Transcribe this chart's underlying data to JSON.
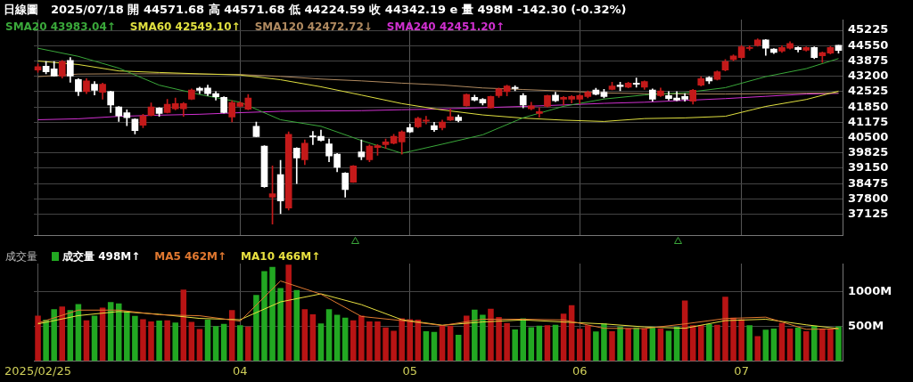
{
  "chart_data": [
    {
      "type": "candlestick",
      "title": "日線圖",
      "subtitle": "2025/07/18 開 44571.68 高 44571.68 低 44224.59 收 44342.19 e 量 498M -142.30 (-0.32%)",
      "categories": [
        "2025/02/25",
        null,
        null,
        null,
        null,
        null,
        null,
        null,
        null,
        null,
        null,
        null,
        null,
        null,
        null,
        null,
        null,
        null,
        null,
        null,
        null,
        null,
        null,
        null,
        null,
        "04",
        null,
        null,
        null,
        null,
        null,
        null,
        null,
        null,
        null,
        null,
        null,
        null,
        null,
        null,
        null,
        null,
        null,
        null,
        null,
        null,
        "05",
        null,
        null,
        null,
        null,
        null,
        null,
        null,
        null,
        null,
        null,
        null,
        null,
        null,
        null,
        null,
        null,
        null,
        null,
        null,
        null,
        "06",
        null,
        null,
        null,
        null,
        null,
        null,
        null,
        null,
        null,
        null,
        null,
        null,
        null,
        null,
        null,
        null,
        null,
        null,
        null,
        "07",
        null,
        null,
        null,
        null,
        null,
        null,
        null,
        null,
        null,
        null,
        null,
        null
      ],
      "ohlc": [
        [
          43475,
          43750,
          43375,
          43625
        ],
        [
          43650,
          43850,
          43312,
          43400
        ],
        [
          43525,
          43850,
          43200,
          43212
        ],
        [
          43212,
          43900,
          43125,
          43850
        ],
        [
          43900,
          44025,
          42938,
          43212
        ],
        [
          43062,
          43100,
          42350,
          42525
        ],
        [
          42525,
          43100,
          42438,
          43000
        ],
        [
          42850,
          42975,
          42375,
          42588
        ],
        [
          42500,
          42900,
          42188,
          42850
        ],
        [
          42525,
          42550,
          41600,
          41938
        ],
        [
          41850,
          41875,
          41212,
          41462
        ],
        [
          41600,
          41725,
          41025,
          41375
        ],
        [
          41312,
          41338,
          40662,
          40812
        ],
        [
          41050,
          41525,
          40938,
          41462
        ],
        [
          41475,
          42025,
          41462,
          41850
        ],
        [
          41800,
          41825,
          41438,
          41562
        ],
        [
          41600,
          42188,
          41588,
          41975
        ],
        [
          41775,
          42250,
          41725,
          42000
        ],
        [
          41775,
          42050,
          41438,
          42000
        ],
        [
          42188,
          42650,
          42175,
          42600
        ],
        [
          42675,
          42725,
          42438,
          42588
        ],
        [
          42688,
          42812,
          42350,
          42438
        ],
        [
          42438,
          42525,
          42150,
          42300
        ],
        [
          42275,
          42300,
          41588,
          41600
        ],
        [
          41412,
          42125,
          41188,
          42050
        ],
        [
          41875,
          42075,
          41850,
          42025
        ],
        [
          41750,
          42400,
          41725,
          42250
        ],
        [
          41000,
          41188,
          40538,
          40550
        ],
        [
          40125,
          40150,
          38312,
          38338
        ],
        [
          37875,
          39250,
          36688,
          38025
        ],
        [
          38875,
          39500,
          37150,
          37712
        ],
        [
          37400,
          40750,
          37312,
          40650
        ],
        [
          40038,
          40062,
          38475,
          39600
        ],
        [
          39525,
          40400,
          39312,
          40250
        ],
        [
          40562,
          40775,
          40188,
          40538
        ],
        [
          40562,
          40838,
          40350,
          40375
        ],
        [
          40225,
          40438,
          39438,
          39688
        ],
        [
          39775,
          39800,
          39000,
          39188
        ],
        [
          38938,
          38962,
          37875,
          38212
        ],
        [
          38538,
          39275,
          38525,
          39250
        ],
        [
          39875,
          40400,
          39525,
          39650
        ],
        [
          39525,
          40188,
          39438,
          40125
        ],
        [
          40062,
          40200,
          39725,
          40150
        ],
        [
          40188,
          40438,
          40025,
          40312
        ],
        [
          40250,
          40650,
          40225,
          40562
        ],
        [
          40312,
          40800,
          39775,
          40750
        ],
        [
          40938,
          41100,
          40725,
          40750
        ],
        [
          40975,
          41400,
          40938,
          41350
        ],
        [
          41225,
          41438,
          41100,
          41275
        ],
        [
          41025,
          41175,
          40775,
          40850
        ],
        [
          40938,
          41275,
          40838,
          41188
        ],
        [
          41275,
          41750,
          41250,
          41425
        ],
        [
          41400,
          41500,
          41188,
          41250
        ],
        [
          41900,
          42425,
          41888,
          42400
        ],
        [
          42275,
          42375,
          42112,
          42150
        ],
        [
          42188,
          42225,
          41938,
          42025
        ],
        [
          41812,
          42338,
          41800,
          42312
        ],
        [
          42350,
          42688,
          42275,
          42650
        ],
        [
          42525,
          42812,
          42338,
          42775
        ],
        [
          42712,
          42788,
          42562,
          42662
        ],
        [
          42350,
          42438,
          41812,
          41938
        ],
        [
          41775,
          42062,
          41725,
          41900
        ],
        [
          41562,
          41812,
          41400,
          41650
        ],
        [
          41875,
          42375,
          41850,
          42350
        ],
        [
          42375,
          42500,
          42088,
          42125
        ],
        [
          42188,
          42312,
          41938,
          42275
        ],
        [
          42188,
          42350,
          42025,
          42312
        ],
        [
          42188,
          42400,
          42000,
          42350
        ],
        [
          42312,
          42562,
          42250,
          42500
        ],
        [
          42600,
          42675,
          42375,
          42412
        ],
        [
          42500,
          42625,
          42250,
          42312
        ],
        [
          42625,
          42938,
          42600,
          42775
        ],
        [
          42812,
          42938,
          42562,
          42750
        ],
        [
          42725,
          42938,
          42688,
          42900
        ],
        [
          42900,
          43125,
          42725,
          42850
        ],
        [
          42725,
          43000,
          42625,
          42975
        ],
        [
          42600,
          42650,
          42100,
          42188
        ],
        [
          42350,
          42688,
          42312,
          42562
        ],
        [
          42350,
          42525,
          42150,
          42225
        ],
        [
          42250,
          42525,
          42125,
          42150
        ],
        [
          42312,
          42438,
          42100,
          42188
        ],
        [
          42100,
          42625,
          41975,
          42588
        ],
        [
          42812,
          43188,
          42775,
          43100
        ],
        [
          43150,
          43188,
          42875,
          43000
        ],
        [
          43062,
          43438,
          43038,
          43400
        ],
        [
          43475,
          43938,
          43438,
          43850
        ],
        [
          43938,
          44150,
          43875,
          44100
        ],
        [
          44025,
          44562,
          44000,
          44500
        ],
        [
          44425,
          44550,
          44350,
          44475
        ],
        [
          44562,
          44850,
          44525,
          44800
        ],
        [
          44800,
          44825,
          44125,
          44438
        ],
        [
          44400,
          44425,
          44200,
          44250
        ],
        [
          44312,
          44550,
          44250,
          44475
        ],
        [
          44438,
          44725,
          44400,
          44650
        ],
        [
          44475,
          44500,
          44275,
          44375
        ],
        [
          44350,
          44500,
          44312,
          44475
        ],
        [
          44475,
          44500,
          43975,
          44025
        ],
        [
          44100,
          44275,
          43812,
          44250
        ],
        [
          44225,
          44525,
          44188,
          44475
        ],
        [
          44572,
          44572,
          44225,
          44342
        ]
      ],
      "colors": [
        "#c41a1a",
        "#ffffff",
        "#ffffff",
        "#c41a1a",
        "#ffffff",
        "#ffffff",
        "#c41a1a",
        "#ffffff",
        "#c41a1a",
        "#ffffff",
        "#ffffff",
        "#ffffff",
        "#ffffff",
        "#c41a1a",
        "#c41a1a",
        "#ffffff",
        "#c41a1a",
        "#c41a1a",
        "#c41a1a",
        "#c41a1a",
        "#ffffff",
        "#ffffff",
        "#ffffff",
        "#ffffff",
        "#c41a1a",
        "#c41a1a",
        "#c41a1a",
        "#ffffff",
        "#ffffff",
        "#c41a1a",
        "#ffffff",
        "#c41a1a",
        "#ffffff",
        "#c41a1a",
        "#ffffff",
        "#ffffff",
        "#ffffff",
        "#ffffff",
        "#ffffff",
        "#c41a1a",
        "#ffffff",
        "#c41a1a",
        "#c41a1a",
        "#c41a1a",
        "#c41a1a",
        "#c41a1a",
        "#ffffff",
        "#c41a1a",
        "#c41a1a",
        "#ffffff",
        "#c41a1a",
        "#c41a1a",
        "#ffffff",
        "#c41a1a",
        "#ffffff",
        "#ffffff",
        "#c41a1a",
        "#c41a1a",
        "#c41a1a",
        "#ffffff",
        "#ffffff",
        "#c41a1a",
        "#c41a1a",
        "#c41a1a",
        "#ffffff",
        "#c41a1a",
        "#c41a1a",
        "#c41a1a",
        "#c41a1a",
        "#ffffff",
        "#ffffff",
        "#c41a1a",
        "#ffffff",
        "#c41a1a",
        "#ffffff",
        "#c41a1a",
        "#ffffff",
        "#c41a1a",
        "#ffffff",
        "#ffffff",
        "#ffffff",
        "#c41a1a",
        "#c41a1a",
        "#ffffff",
        "#c41a1a",
        "#c41a1a",
        "#c41a1a",
        "#c41a1a",
        "#c41a1a",
        "#c41a1a",
        "#ffffff",
        "#ffffff",
        "#c41a1a",
        "#c41a1a",
        "#ffffff",
        "#c41a1a",
        "#ffffff",
        "#c41a1a",
        "#c41a1a",
        "#ffffff"
      ],
      "series": [
        {
          "name": "SMA20 43983.04↑",
          "type": "line",
          "color": "#3aa83a",
          "values": [
            44438,
            null,
            null,
            null,
            null,
            44080,
            null,
            null,
            null,
            null,
            43562,
            null,
            null,
            null,
            null,
            42812,
            null,
            null,
            null,
            null,
            42400,
            null,
            null,
            null,
            null,
            42060,
            null,
            null,
            null,
            null,
            41288,
            null,
            null,
            null,
            null,
            41000,
            null,
            null,
            null,
            null,
            40375,
            null,
            null,
            null,
            null,
            39810,
            null,
            null,
            null,
            null,
            40212,
            null,
            null,
            null,
            null,
            40625,
            null,
            null,
            null,
            null,
            41375,
            null,
            null,
            null,
            null,
            41880,
            null,
            null,
            null,
            null,
            42200,
            null,
            null,
            null,
            null,
            42380,
            null,
            null,
            null,
            null,
            42480,
            null,
            null,
            null,
            null,
            42700,
            null,
            null,
            null,
            null,
            43188,
            null,
            null,
            null,
            null,
            43540,
            null,
            null,
            null,
            43983
          ]
        },
        {
          "name": "SMA60 42549.10↑",
          "type": "line",
          "color": "#e0e040",
          "values": [
            43875,
            null,
            null,
            null,
            null,
            43720,
            null,
            null,
            null,
            null,
            43438,
            null,
            null,
            null,
            null,
            43370,
            null,
            null,
            null,
            null,
            43310,
            null,
            null,
            null,
            null,
            43260,
            null,
            null,
            null,
            null,
            43050,
            null,
            null,
            null,
            null,
            42740,
            null,
            null,
            null,
            null,
            42375,
            null,
            null,
            null,
            null,
            42000,
            null,
            null,
            null,
            null,
            41720,
            null,
            null,
            null,
            null,
            41500,
            null,
            null,
            null,
            null,
            41360,
            null,
            null,
            null,
            null,
            41270,
            null,
            null,
            null,
            null,
            41212,
            null,
            null,
            null,
            null,
            41340,
            null,
            null,
            null,
            null,
            41370,
            null,
            null,
            null,
            null,
            41440,
            null,
            null,
            null,
            null,
            41875,
            null,
            null,
            null,
            null,
            42180,
            null,
            null,
            null,
            42549
          ]
        },
        {
          "name": "SMA120 42472.72↓",
          "type": "line",
          "color": "#b08a60",
          "values": [
            43188,
            null,
            null,
            null,
            null,
            43300,
            null,
            null,
            null,
            null,
            43312,
            null,
            null,
            null,
            null,
            43312,
            null,
            null,
            null,
            null,
            43300,
            null,
            null,
            null,
            null,
            43280,
            null,
            null,
            null,
            null,
            43200,
            null,
            null,
            null,
            null,
            43080,
            null,
            null,
            null,
            null,
            43000,
            null,
            null,
            null,
            null,
            42900,
            null,
            null,
            null,
            null,
            42820,
            null,
            null,
            null,
            null,
            42688,
            null,
            null,
            null,
            null,
            42620,
            null,
            null,
            null,
            null,
            42550,
            null,
            null,
            null,
            null,
            42470,
            null,
            null,
            null,
            null,
            42440,
            null,
            null,
            null,
            null,
            42420,
            null,
            null,
            null,
            null,
            42420,
            null,
            null,
            null,
            null,
            42440,
            null,
            null,
            null,
            null,
            42460,
            null,
            null,
            null,
            42473
          ]
        },
        {
          "name": "SMA240 42451.20↑",
          "type": "line",
          "color": "#d030d0",
          "values": [
            41288,
            null,
            null,
            null,
            null,
            41330,
            null,
            null,
            null,
            null,
            41438,
            null,
            null,
            null,
            null,
            41490,
            null,
            null,
            null,
            null,
            41530,
            null,
            null,
            null,
            null,
            41600,
            null,
            null,
            null,
            null,
            41660,
            null,
            null,
            null,
            null,
            41675,
            null,
            null,
            null,
            null,
            41688,
            null,
            null,
            null,
            null,
            41730,
            null,
            null,
            null,
            null,
            41765,
            null,
            null,
            null,
            null,
            41820,
            null,
            null,
            null,
            null,
            41875,
            null,
            null,
            null,
            null,
            41940,
            null,
            null,
            null,
            null,
            42010,
            null,
            null,
            null,
            null,
            42060,
            null,
            null,
            null,
            null,
            42140,
            null,
            null,
            null,
            null,
            42220,
            null,
            null,
            null,
            null,
            42320,
            null,
            null,
            null,
            null,
            42420,
            null,
            null,
            null,
            42451
          ]
        }
      ],
      "ylim": [
        36200,
        45700
      ],
      "yticks": [
        45225,
        44550,
        43875,
        43200,
        42525,
        41850,
        41175,
        40500,
        39825,
        39150,
        38475,
        37800,
        37125
      ],
      "grid": true,
      "legend": "top left",
      "tick_labels": "y"
    },
    {
      "type": "bar",
      "title": "成交量",
      "categories": [
        "2025/02/25",
        null,
        null,
        null,
        null,
        null,
        null,
        null,
        null,
        null,
        null,
        null,
        null,
        null,
        null,
        null,
        null,
        null,
        null,
        null,
        null,
        null,
        null,
        null,
        null,
        "04",
        null,
        null,
        null,
        null,
        null,
        null,
        null,
        null,
        null,
        null,
        null,
        null,
        null,
        null,
        null,
        null,
        null,
        null,
        null,
        null,
        "05",
        null,
        null,
        null,
        null,
        null,
        null,
        null,
        null,
        null,
        null,
        null,
        null,
        null,
        null,
        null,
        null,
        null,
        null,
        null,
        null,
        "06",
        null,
        null,
        null,
        null,
        null,
        null,
        null,
        null,
        null,
        null,
        null,
        null,
        null,
        null,
        null,
        null,
        null,
        null,
        null,
        "07",
        null,
        null,
        null,
        null,
        null,
        null,
        null,
        null,
        null,
        null,
        null,
        null
      ],
      "series": [
        {
          "name": "成交量 498M↑",
          "type": "bar",
          "colors": [
            "#b81414",
            "#22a822",
            "#22a822",
            "#b81414",
            "#22a822",
            "#22a822",
            "#b81414",
            "#22a822",
            "#b81414",
            "#22a822",
            "#22a822",
            "#22a822",
            "#22a822",
            "#b81414",
            "#b81414",
            "#22a822",
            "#b81414",
            "#22a822",
            "#b81414",
            "#b81414",
            "#b81414",
            "#22a822",
            "#22a822",
            "#22a822",
            "#b81414",
            "#22a822",
            "#b81414",
            "#22a822",
            "#22a822",
            "#22a822",
            "#22a822",
            "#b81414",
            "#22a822",
            "#b81414",
            "#b81414",
            "#22a822",
            "#22a822",
            "#22a822",
            "#22a822",
            "#b81414",
            "#b81414",
            "#b81414",
            "#b81414",
            "#b81414",
            "#b81414",
            "#b81414",
            "#b81414",
            "#b81414",
            "#22a822",
            "#22a822",
            "#b81414",
            "#b81414",
            "#22a822",
            "#b81414",
            "#22a822",
            "#22a822",
            "#b81414",
            "#b81414",
            "#b81414",
            "#22a822",
            "#22a822",
            "#22a822",
            "#22a822",
            "#b81414",
            "#22a822",
            "#b81414",
            "#b81414",
            "#b81414",
            "#b81414",
            "#22a822",
            "#22a822",
            "#b81414",
            "#22a822",
            "#b81414",
            "#22a822",
            "#b81414",
            "#22a822",
            "#b81414",
            "#22a822",
            "#22a822",
            "#b81414",
            "#b81414",
            "#b81414",
            "#22a822",
            "#b81414",
            "#b81414",
            "#b81414",
            "#b81414",
            "#22a822",
            "#b81414",
            "#22a822",
            "#22a822",
            "#b81414",
            "#b81414",
            "#22a822",
            "#b81414",
            "#22a822",
            "#b81414",
            "#b81414",
            "#22a822"
          ],
          "values": [
            652,
            593,
            743,
            782,
            731,
            818,
            585,
            652,
            766,
            845,
            826,
            719,
            648,
            600,
            569,
            581,
            585,
            553,
            1027,
            561,
            458,
            593,
            502,
            533,
            731,
            514,
            494,
            948,
            1292,
            1351,
            1047,
            1383,
            1019,
            743,
            672,
            541,
            743,
            664,
            624,
            585,
            652,
            569,
            569,
            482,
            435,
            612,
            600,
            593,
            427,
            419,
            514,
            506,
            375,
            652,
            739,
            664,
            751,
            632,
            545,
            454,
            612,
            486,
            506,
            514,
            521,
            679,
            802,
            462,
            514,
            423,
            541,
            427,
            494,
            466,
            482,
            466,
            494,
            466,
            435,
            490,
            869,
            514,
            514,
            529,
            521,
            924,
            624,
            600,
            514,
            356,
            450,
            466,
            545,
            466,
            482,
            427,
            506,
            466,
            466,
            498
          ]
        },
        {
          "name": "MA5 462M↑",
          "type": "line",
          "color": "#e07830",
          "values": [
            545,
            null,
            null,
            null,
            null,
            731,
            null,
            null,
            null,
            null,
            731,
            null,
            null,
            null,
            null,
            664,
            null,
            null,
            null,
            null,
            650,
            null,
            null,
            null,
            null,
            573,
            null,
            null,
            null,
            null,
            1150,
            null,
            null,
            null,
            null,
            960,
            null,
            null,
            null,
            null,
            640,
            null,
            null,
            null,
            null,
            580,
            null,
            null,
            null,
            null,
            510,
            null,
            null,
            null,
            null,
            600,
            null,
            null,
            null,
            null,
            600,
            null,
            null,
            null,
            null,
            590,
            null,
            null,
            null,
            null,
            470,
            null,
            null,
            null,
            null,
            466,
            null,
            null,
            null,
            null,
            533,
            null,
            null,
            null,
            null,
            610,
            null,
            null,
            null,
            null,
            630,
            null,
            null,
            null,
            null,
            455,
            null,
            null,
            null,
            462
          ]
        },
        {
          "name": "MA10 466M↑",
          "type": "line",
          "color": "#e8e040",
          "values": [
            533,
            null,
            null,
            null,
            null,
            652,
            null,
            null,
            null,
            null,
            711,
            null,
            null,
            null,
            null,
            672,
            null,
            null,
            null,
            null,
            612,
            null,
            null,
            null,
            null,
            593,
            null,
            null,
            null,
            null,
            849,
            null,
            null,
            null,
            null,
            965,
            null,
            null,
            null,
            null,
            810,
            null,
            null,
            null,
            null,
            593,
            null,
            null,
            null,
            null,
            514,
            null,
            null,
            null,
            null,
            561,
            null,
            null,
            null,
            null,
            590,
            null,
            null,
            null,
            null,
            560,
            null,
            null,
            null,
            null,
            533,
            null,
            null,
            null,
            null,
            490,
            null,
            null,
            null,
            null,
            470,
            null,
            null,
            null,
            null,
            580,
            null,
            null,
            null,
            null,
            600,
            null,
            null,
            null,
            null,
            520,
            null,
            null,
            null,
            466
          ]
        }
      ],
      "ylim": [
        0,
        1400
      ],
      "yticks": [
        {
          "value": 1000,
          "label": "1000M"
        },
        {
          "value": 500,
          "label": "500M"
        }
      ],
      "grid": true,
      "legend": "top left"
    }
  ]
}
